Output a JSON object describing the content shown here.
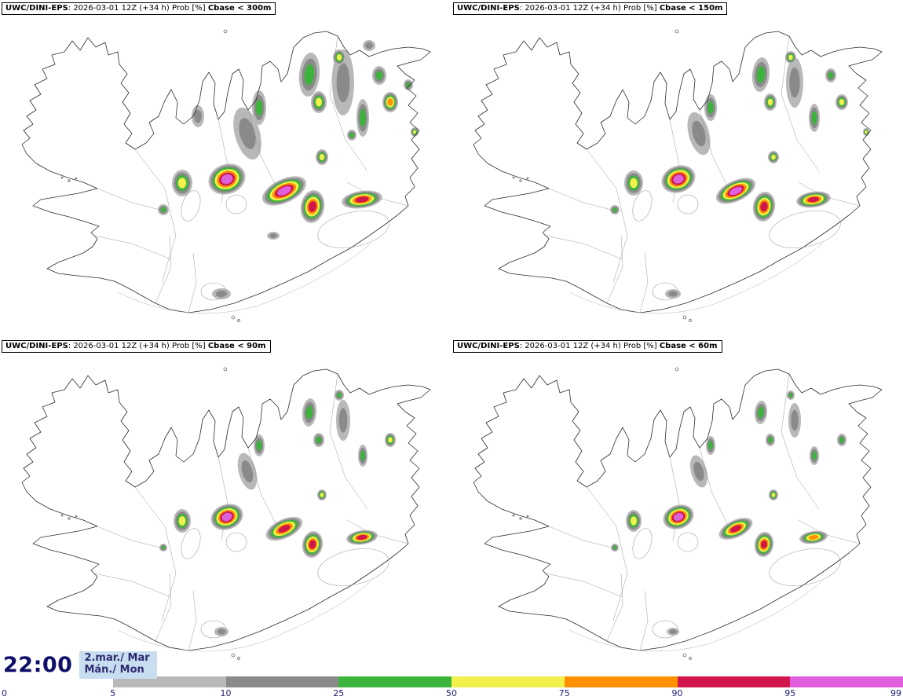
{
  "panels": [
    {
      "model": "UWC/DINI-EPS",
      "meta": ": 2026-03-01 12Z (+34 h) Prob [%] ",
      "threshold": "Cbase < 300m",
      "spots": [
        [
          315,
          170,
          16,
          34,
          -15,
          2
        ],
        [
          437,
          105,
          14,
          42,
          0,
          2
        ],
        [
          252,
          148,
          8,
          14,
          0,
          2
        ],
        [
          470,
          58,
          8,
          7,
          0,
          2
        ],
        [
          282,
          374,
          12,
          7,
          0,
          2
        ],
        [
          348,
          300,
          8,
          5,
          0,
          2
        ],
        [
          394,
          95,
          13,
          28,
          5,
          3
        ],
        [
          330,
          137,
          9,
          22,
          0,
          3
        ],
        [
          462,
          150,
          8,
          24,
          0,
          3
        ],
        [
          483,
          96,
          9,
          12,
          0,
          3
        ],
        [
          448,
          172,
          6,
          7,
          0,
          3
        ],
        [
          208,
          267,
          7,
          7,
          0,
          3
        ],
        [
          520,
          108,
          6,
          7,
          0,
          3
        ],
        [
          406,
          130,
          10,
          14,
          0,
          4
        ],
        [
          410,
          200,
          8,
          10,
          0,
          4
        ],
        [
          432,
          73,
          8,
          10,
          0,
          4
        ],
        [
          528,
          168,
          5,
          6,
          0,
          4
        ],
        [
          497,
          130,
          10,
          13,
          0,
          5
        ],
        [
          232,
          233,
          13,
          17,
          0,
          4
        ],
        [
          289,
          228,
          24,
          19,
          -20,
          7
        ],
        [
          362,
          243,
          30,
          15,
          -25,
          7
        ],
        [
          398,
          263,
          15,
          21,
          10,
          6
        ],
        [
          461,
          254,
          26,
          11,
          -8,
          6
        ]
      ]
    },
    {
      "model": "UWC/DINI-EPS",
      "meta": ": 2026-03-01 12Z (+34 h) Prob [%] ",
      "threshold": "Cbase < 150m",
      "spots": [
        [
          315,
          170,
          13,
          28,
          -15,
          2
        ],
        [
          437,
          105,
          11,
          32,
          0,
          2
        ],
        [
          282,
          374,
          10,
          6,
          0,
          2
        ],
        [
          394,
          95,
          11,
          22,
          5,
          3
        ],
        [
          330,
          137,
          8,
          17,
          0,
          3
        ],
        [
          462,
          150,
          7,
          18,
          0,
          3
        ],
        [
          483,
          96,
          7,
          9,
          0,
          3
        ],
        [
          208,
          267,
          6,
          6,
          0,
          3
        ],
        [
          406,
          130,
          8,
          11,
          0,
          4
        ],
        [
          410,
          200,
          7,
          8,
          0,
          4
        ],
        [
          432,
          73,
          7,
          8,
          0,
          4
        ],
        [
          528,
          168,
          4,
          5,
          0,
          4
        ],
        [
          497,
          130,
          8,
          10,
          0,
          4
        ],
        [
          232,
          233,
          12,
          16,
          0,
          4
        ],
        [
          289,
          228,
          22,
          17,
          -20,
          7
        ],
        [
          362,
          243,
          27,
          13,
          -25,
          7
        ],
        [
          398,
          263,
          14,
          19,
          10,
          6
        ],
        [
          461,
          254,
          22,
          10,
          -8,
          6
        ]
      ]
    },
    {
      "model": "UWC/DINI-EPS",
      "meta": ": 2026-03-01 12Z (+34 h) Prob [%] ",
      "threshold": "Cbase < 90m",
      "spots": [
        [
          315,
          170,
          11,
          24,
          -15,
          2
        ],
        [
          437,
          105,
          9,
          26,
          0,
          2
        ],
        [
          282,
          374,
          9,
          6,
          0,
          2
        ],
        [
          394,
          95,
          9,
          18,
          5,
          3
        ],
        [
          330,
          137,
          7,
          14,
          0,
          3
        ],
        [
          462,
          150,
          6,
          14,
          0,
          3
        ],
        [
          208,
          267,
          5,
          5,
          0,
          3
        ],
        [
          406,
          130,
          7,
          9,
          0,
          3
        ],
        [
          432,
          73,
          6,
          7,
          0,
          3
        ],
        [
          410,
          200,
          6,
          7,
          0,
          4
        ],
        [
          497,
          130,
          7,
          9,
          0,
          4
        ],
        [
          232,
          233,
          11,
          15,
          0,
          4
        ],
        [
          289,
          228,
          21,
          16,
          -20,
          7
        ],
        [
          362,
          243,
          25,
          12,
          -25,
          6
        ],
        [
          398,
          263,
          13,
          17,
          10,
          6
        ],
        [
          461,
          254,
          20,
          9,
          -8,
          6
        ]
      ]
    },
    {
      "model": "UWC/DINI-EPS",
      "meta": ": 2026-03-01 12Z (+34 h) Prob [%] ",
      "threshold": "Cbase < 60m",
      "spots": [
        [
          315,
          170,
          10,
          21,
          -15,
          2
        ],
        [
          437,
          105,
          8,
          22,
          0,
          2
        ],
        [
          282,
          374,
          8,
          5,
          0,
          2
        ],
        [
          394,
          95,
          8,
          15,
          5,
          3
        ],
        [
          330,
          137,
          6,
          12,
          0,
          3
        ],
        [
          462,
          150,
          6,
          12,
          0,
          3
        ],
        [
          208,
          267,
          5,
          5,
          0,
          3
        ],
        [
          406,
          130,
          6,
          8,
          0,
          3
        ],
        [
          432,
          73,
          5,
          6,
          0,
          3
        ],
        [
          497,
          130,
          6,
          8,
          0,
          3
        ],
        [
          410,
          200,
          6,
          7,
          0,
          4
        ],
        [
          232,
          233,
          10,
          14,
          0,
          4
        ],
        [
          289,
          228,
          20,
          15,
          -20,
          7
        ],
        [
          362,
          243,
          23,
          11,
          -25,
          6
        ],
        [
          398,
          263,
          12,
          16,
          10,
          6
        ],
        [
          461,
          254,
          18,
          8,
          -8,
          5
        ]
      ]
    }
  ],
  "legend": {
    "ticks": [
      "0",
      "5",
      "10",
      "25",
      "50",
      "75",
      "90",
      "95",
      "99"
    ],
    "colors": [
      "#ffffff",
      "#b8b8b8",
      "#8a8a8a",
      "#3cb43c",
      "#f2f04c",
      "#ff9100",
      "#d0164c",
      "#df5fdf"
    ]
  },
  "clock": {
    "time": "22:00",
    "date1": "2.mar./ Mar",
    "date2": "Mán./ Mon"
  }
}
